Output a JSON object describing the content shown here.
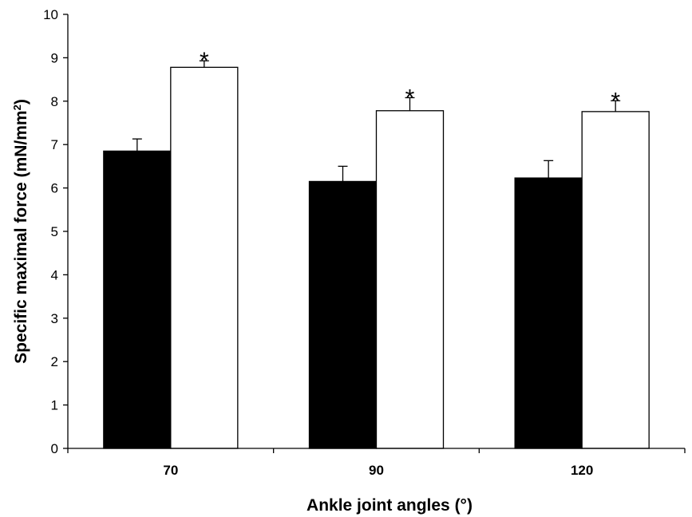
{
  "chart_data": {
    "type": "bar",
    "categories": [
      "70",
      "90",
      "120"
    ],
    "series": [
      {
        "values": [
          6.85,
          6.15,
          6.23
        ],
        "errors": [
          0.28,
          0.35,
          0.4
        ],
        "fill": "#000000"
      },
      {
        "values": [
          8.78,
          7.78,
          7.76
        ],
        "errors": [
          0.15,
          0.3,
          0.25
        ],
        "fill": "#ffffff"
      }
    ],
    "significance": [
      "*",
      "*",
      "*"
    ],
    "xlabel": "Ankle joint angles (°)",
    "ylabel": "Specific maximal force (mN/mm",
    "ylabel_sup": "2",
    "ylabel_end": ")",
    "ylim": [
      0,
      10
    ],
    "yticks": [
      "0",
      "1",
      "2",
      "3",
      "4",
      "5",
      "6",
      "7",
      "8",
      "9",
      "10"
    ],
    "grid": false
  }
}
